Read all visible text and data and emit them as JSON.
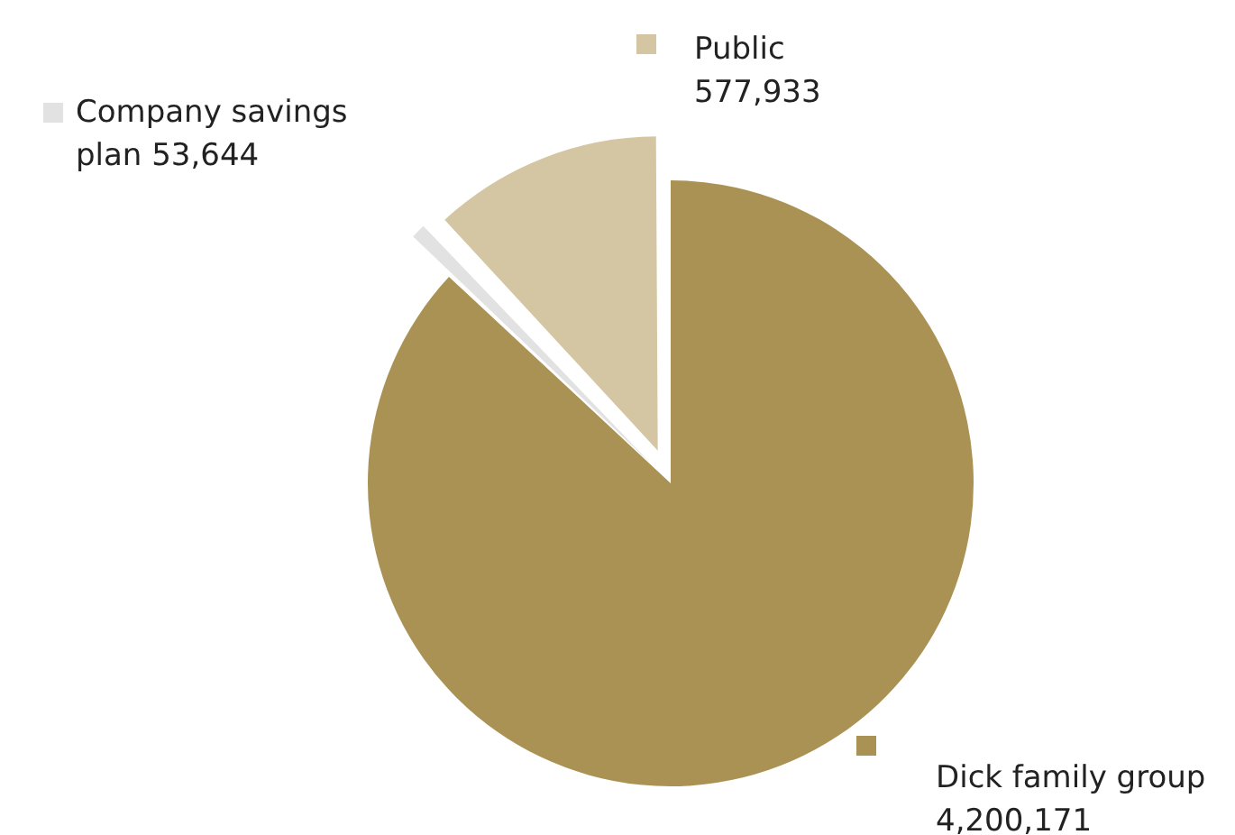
{
  "chart_data": {
    "type": "pie",
    "categories": [
      "Dick family group",
      "Company savings plan",
      "Public"
    ],
    "values": [
      4200171,
      53644,
      577933
    ],
    "colors": [
      "#aa9254",
      "#e2e2e2",
      "#d4c6a2"
    ],
    "value_labels": [
      "4,200,171",
      "53,644",
      "577,933"
    ],
    "legend": "top"
  }
}
